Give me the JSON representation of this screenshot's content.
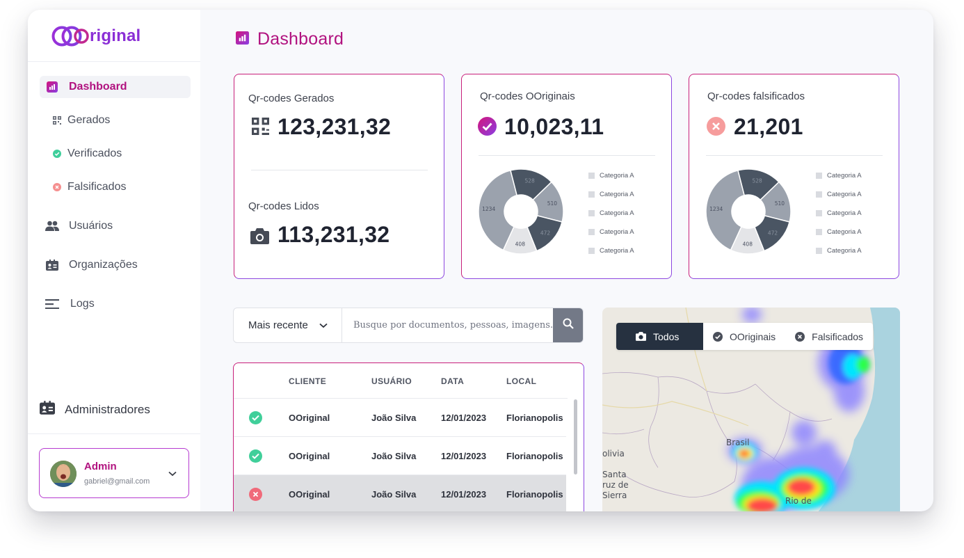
{
  "app": {
    "logo_text": "riginal"
  },
  "sidebar": {
    "items": [
      {
        "label": "Dashboard",
        "icon": "bar-chart-icon"
      },
      {
        "label": "Gerados",
        "icon": "qr-code-icon"
      },
      {
        "label": "Verificados",
        "icon": "check-circle-icon"
      },
      {
        "label": "Falsificados",
        "icon": "x-circle-icon"
      },
      {
        "label": "Usuários",
        "icon": "users-icon"
      },
      {
        "label": "Organizações",
        "icon": "id-card-icon"
      },
      {
        "label": "Logs",
        "icon": "lines-icon"
      }
    ],
    "admins_label": "Administradores",
    "user": {
      "name": "Admin",
      "email": "gabriel@gmail.com"
    }
  },
  "header": {
    "title": "Dashboard"
  },
  "cards": {
    "generated": {
      "label": "Qr-codes Gerados",
      "value": "123,231,32"
    },
    "read": {
      "label": "Qr-codes Lidos",
      "value": "113,231,32"
    },
    "originals": {
      "label": "Qr-codes OOriginais",
      "value": "10,023,11"
    },
    "fakes": {
      "label": "Qr-codes falsificados",
      "value": "21,201"
    }
  },
  "chart_data": [
    {
      "type": "pie",
      "categories": [
        "528",
        "510",
        "472",
        "408",
        "1234"
      ],
      "values": [
        528,
        510,
        472,
        408,
        1234
      ],
      "legend": [
        "Categoria A",
        "Categoria A",
        "Categoria A",
        "Categoria A",
        "Categoria A"
      ],
      "colors": [
        "#4a5563",
        "#9ba2ad",
        "#4a5563",
        "#e4e5e8",
        "#9ba2ad"
      ]
    },
    {
      "type": "pie",
      "categories": [
        "528",
        "510",
        "472",
        "408",
        "1234"
      ],
      "values": [
        528,
        510,
        472,
        408,
        1234
      ],
      "legend": [
        "Categoria A",
        "Categoria A",
        "Categoria A",
        "Categoria A",
        "Categoria A"
      ],
      "colors": [
        "#4a5563",
        "#9ba2ad",
        "#4a5563",
        "#e4e5e8",
        "#9ba2ad"
      ]
    }
  ],
  "search": {
    "sort_label": "Mais recente",
    "placeholder": "Busque por documentos, pessoas, imagens..."
  },
  "table": {
    "headers": [
      "CLIENTE",
      "USUÁRIO",
      "DATA",
      "LOCAL"
    ],
    "rows": [
      {
        "status": "ok",
        "client": "OOriginal",
        "user": "João Silva",
        "date": "12/01/2023",
        "local": "Florianopolis"
      },
      {
        "status": "ok",
        "client": "OOriginal",
        "user": "João Silva",
        "date": "12/01/2023",
        "local": "Florianopolis"
      },
      {
        "status": "fake",
        "client": "OOriginal",
        "user": "João Silva",
        "date": "12/01/2023",
        "local": "Florianopolis"
      }
    ]
  },
  "map": {
    "filters": [
      {
        "label": "Todos",
        "icon": "camera-icon"
      },
      {
        "label": "OOriginais",
        "icon": "check-circle-icon"
      },
      {
        "label": "Falsificados",
        "icon": "x-circle-icon"
      }
    ],
    "labels": [
      "Brasil",
      "olivia",
      "Santa",
      "ruz de",
      "Sierra",
      "Rio de"
    ]
  }
}
